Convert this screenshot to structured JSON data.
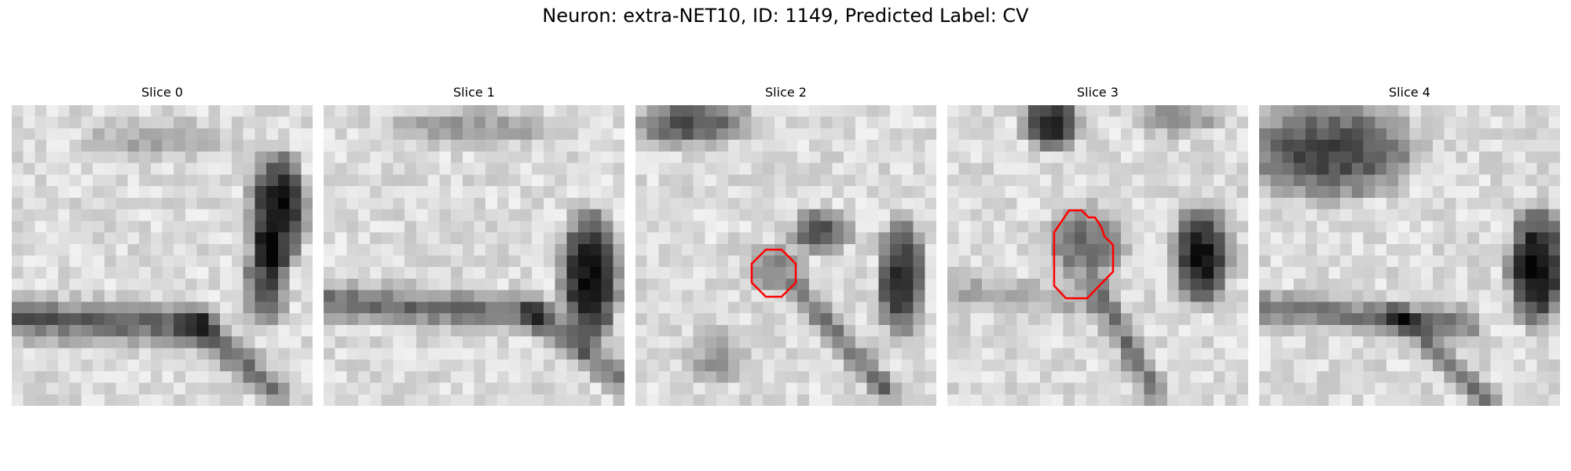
{
  "figure": {
    "title": "Neuron: extra-NET10, ID: 1149, Predicted Label: CV"
  },
  "slices": [
    {
      "label": "Slice 0",
      "roi": false
    },
    {
      "label": "Slice 1",
      "roi": false
    },
    {
      "label": "Slice 2",
      "roi": true
    },
    {
      "label": "Slice 3",
      "roi": true
    },
    {
      "label": "Slice 4",
      "roi": false
    }
  ],
  "colors": {
    "roi_outline": "#ff0000",
    "colormap": "grayscale"
  }
}
